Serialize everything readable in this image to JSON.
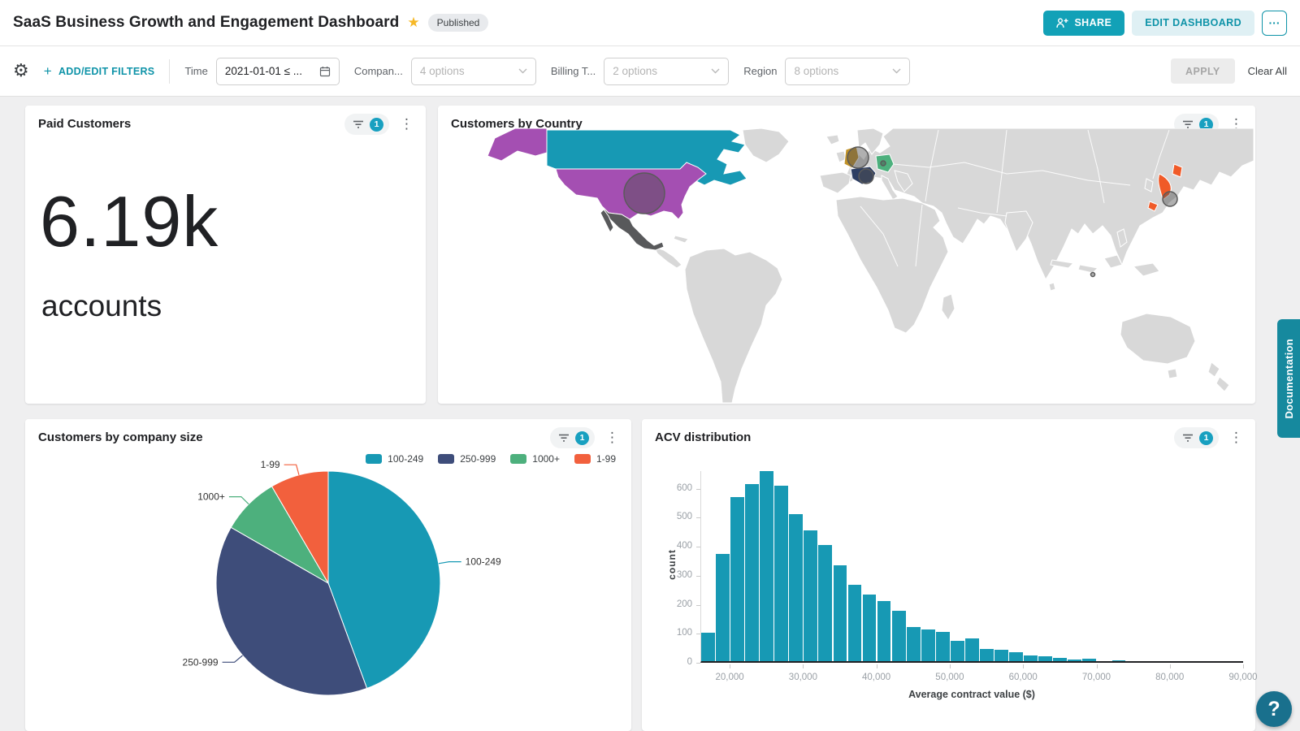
{
  "header": {
    "title": "SaaS Business Growth and Engagement Dashboard",
    "published_badge": "Published",
    "share_button": "SHARE",
    "edit_button": "EDIT DASHBOARD",
    "more_button": "···"
  },
  "filter_bar": {
    "plus": "+",
    "add_edit_label": "ADD/EDIT FILTERS",
    "filters": [
      {
        "label": "Time",
        "value": "2021-01-01 ≤ ...",
        "control": "date"
      },
      {
        "label": "Compan...",
        "value": "4 options",
        "control": "select"
      },
      {
        "label": "Billing T...",
        "value": "2 options",
        "control": "select"
      },
      {
        "label": "Region",
        "value": "8 options",
        "control": "select"
      }
    ],
    "apply_label": "APPLY",
    "clear_label": "Clear All"
  },
  "tiles": {
    "paid_customers": {
      "title": "Paid Customers",
      "filter_count": "1",
      "value": "6.19k",
      "unit": "accounts"
    },
    "customers_by_country": {
      "title": "Customers by Country",
      "filter_count": "1"
    },
    "company_size": {
      "title": "Customers by company size",
      "filter_count": "1"
    },
    "acv": {
      "title": "ACV distribution",
      "filter_count": "1"
    }
  },
  "side": {
    "documentation_label": "Documentation",
    "help_label": "?"
  },
  "colors": {
    "brand_teal": "#12a1b7",
    "chart_teal": "#1799b4",
    "badge_teal": "#18a0c0"
  },
  "chart_data": [
    {
      "type": "pie",
      "title": "Customers by company size",
      "labels": [
        "100-249",
        "250-999",
        "1000+",
        "1-99"
      ],
      "values_pct": [
        44.4,
        38.9,
        8.3,
        8.4
      ],
      "colors": [
        "#1799b4",
        "#3e4d7a",
        "#4db07d",
        "#f2603d"
      ],
      "legend_position": "top-right",
      "start_angle_deg": 0,
      "direction": "clockwise"
    },
    {
      "type": "bar",
      "subtype": "histogram",
      "title": "ACV distribution",
      "xlabel": "Average contract value ($)",
      "ylabel": "count",
      "bin_start": 16000,
      "bin_width": 2000,
      "values": [
        97,
        370,
        565,
        610,
        655,
        605,
        507,
        450,
        400,
        330,
        262,
        230,
        207,
        173,
        117,
        108,
        100,
        70,
        78,
        43,
        38,
        30,
        20,
        16,
        10,
        5,
        9,
        0,
        4,
        0,
        0,
        0,
        0,
        0,
        0,
        0,
        0
      ],
      "x_ticks": [
        20000,
        30000,
        40000,
        50000,
        60000,
        70000,
        80000,
        90000
      ],
      "y_ticks": [
        0,
        100,
        200,
        300,
        400,
        500,
        600
      ],
      "xlim": [
        16000,
        90000
      ],
      "ylim": [
        0,
        660
      ],
      "bar_color": "#1799b4",
      "grid": false
    },
    {
      "type": "heatmap",
      "subtype": "choropleth-world-map",
      "title": "Customers by Country",
      "base_land_color": "#d8d8d8",
      "ocean_color": "#ffffff",
      "highlighted": [
        {
          "country": "Canada",
          "color": "#1799b4",
          "bubble": "none"
        },
        {
          "country": "United States",
          "color": "#a44fb2",
          "bubble": "large"
        },
        {
          "country": "Alaska (US)",
          "color": "#a44fb2",
          "bubble": "none"
        },
        {
          "country": "Mexico",
          "color": "#58595b",
          "bubble": "none"
        },
        {
          "country": "United Kingdom",
          "color": "#c19228",
          "bubble": "medium"
        },
        {
          "country": "France",
          "color": "#2e3f63",
          "bubble": "small"
        },
        {
          "country": "Germany",
          "color": "#4db07d",
          "bubble": "dot"
        },
        {
          "country": "Japan",
          "color": "#f05a28",
          "bubble": "small"
        }
      ]
    }
  ]
}
